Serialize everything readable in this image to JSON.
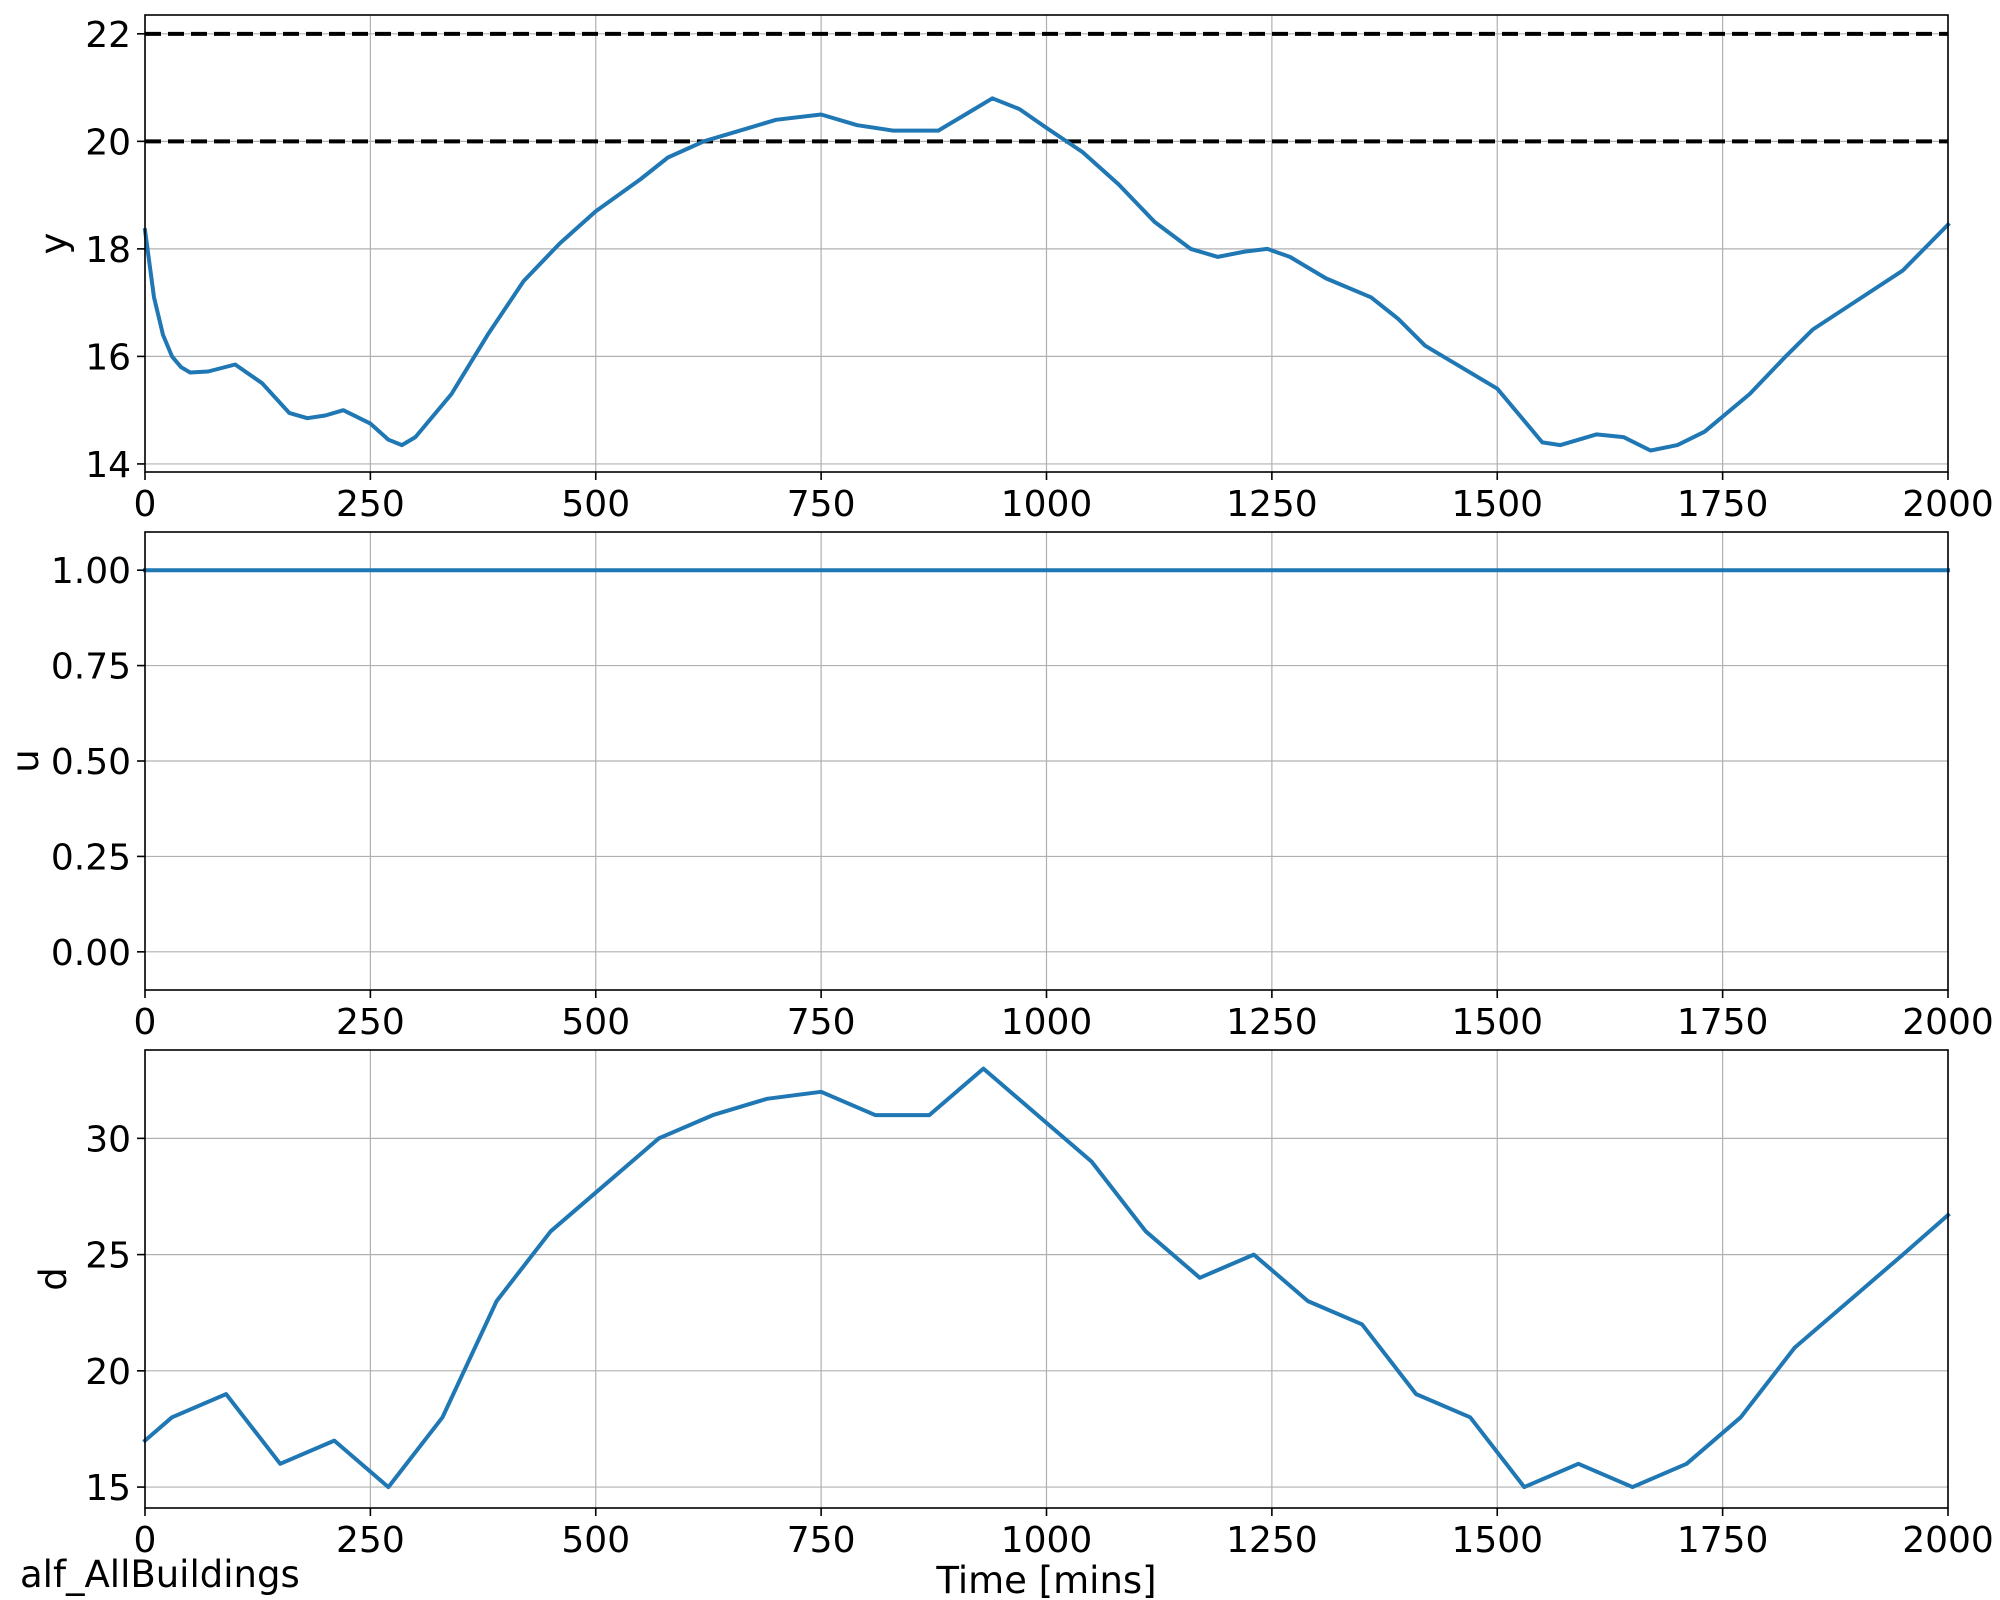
{
  "footer_text": "alf_AllBuildings",
  "chart_data": [
    {
      "type": "line",
      "ylabel": "y",
      "xlabel": "",
      "xlim": [
        0,
        2000
      ],
      "ylim": [
        13.85,
        22.35
      ],
      "xticks": [
        0,
        250,
        500,
        750,
        1000,
        1250,
        1500,
        1750,
        2000
      ],
      "yticks": [
        14,
        16,
        18,
        20,
        22
      ],
      "ytick_labels": [
        "14",
        "16",
        "18",
        "20",
        "22"
      ],
      "grid": true,
      "reference_lines": [
        {
          "y": 22,
          "style": "dashed",
          "color": "#000000"
        },
        {
          "y": 20,
          "style": "dashed",
          "color": "#000000"
        }
      ],
      "series": [
        {
          "color": "#1f77b4",
          "x": [
            0,
            10,
            20,
            30,
            40,
            50,
            70,
            100,
            130,
            160,
            180,
            200,
            220,
            250,
            270,
            285,
            300,
            340,
            380,
            420,
            460,
            500,
            550,
            580,
            620,
            660,
            700,
            750,
            790,
            830,
            880,
            910,
            940,
            970,
            1000,
            1040,
            1080,
            1120,
            1160,
            1190,
            1220,
            1245,
            1270,
            1310,
            1360,
            1390,
            1420,
            1460,
            1500,
            1530,
            1550,
            1570,
            1610,
            1640,
            1670,
            1700,
            1730,
            1780,
            1820,
            1850,
            1900,
            1950,
            2000
          ],
          "y": [
            18.35,
            17.1,
            16.4,
            16.0,
            15.8,
            15.7,
            15.72,
            15.85,
            15.5,
            14.95,
            14.85,
            14.9,
            15.0,
            14.75,
            14.45,
            14.35,
            14.5,
            15.3,
            16.4,
            17.4,
            18.1,
            18.7,
            19.3,
            19.7,
            20.0,
            20.2,
            20.4,
            20.5,
            20.3,
            20.2,
            20.2,
            20.5,
            20.8,
            20.6,
            20.25,
            19.8,
            19.2,
            18.5,
            18.0,
            17.85,
            17.95,
            18.0,
            17.85,
            17.45,
            17.1,
            16.7,
            16.2,
            15.8,
            15.4,
            14.8,
            14.4,
            14.35,
            14.55,
            14.5,
            14.25,
            14.35,
            14.6,
            15.3,
            16.0,
            16.5,
            17.05,
            17.6,
            18.45
          ]
        }
      ]
    },
    {
      "type": "line",
      "ylabel": "u",
      "xlabel": "",
      "xlim": [
        0,
        2000
      ],
      "ylim": [
        -0.1,
        1.1
      ],
      "xticks": [
        0,
        250,
        500,
        750,
        1000,
        1250,
        1500,
        1750,
        2000
      ],
      "yticks": [
        0,
        0.25,
        0.5,
        0.75,
        1.0
      ],
      "ytick_labels": [
        "0.00",
        "0.25",
        "0.50",
        "0.75",
        "1.00"
      ],
      "grid": true,
      "reference_lines": [],
      "series": [
        {
          "color": "#1f77b4",
          "x": [
            0,
            2000
          ],
          "y": [
            1.0,
            1.0
          ]
        }
      ]
    },
    {
      "type": "line",
      "ylabel": "d",
      "xlabel": "Time [mins]",
      "xlim": [
        0,
        2000
      ],
      "ylim": [
        14.1,
        33.8
      ],
      "xticks": [
        0,
        250,
        500,
        750,
        1000,
        1250,
        1500,
        1750,
        2000
      ],
      "yticks": [
        15,
        20,
        25,
        30
      ],
      "ytick_labels": [
        "15",
        "20",
        "25",
        "30"
      ],
      "grid": true,
      "reference_lines": [],
      "series": [
        {
          "color": "#1f77b4",
          "x": [
            0,
            30,
            90,
            150,
            210,
            270,
            330,
            390,
            450,
            510,
            570,
            630,
            690,
            750,
            810,
            870,
            930,
            990,
            1050,
            1110,
            1170,
            1230,
            1290,
            1350,
            1410,
            1470,
            1530,
            1590,
            1650,
            1710,
            1770,
            1830,
            1890,
            1950,
            2000
          ],
          "y": [
            17,
            18,
            19,
            16,
            17,
            15,
            18,
            23,
            26,
            28,
            30,
            31,
            31.7,
            32,
            31,
            31,
            33,
            31,
            29,
            26,
            24,
            25,
            23,
            22,
            19,
            18,
            15,
            16,
            15,
            16,
            18,
            21,
            23,
            25,
            26.7
          ]
        }
      ]
    }
  ]
}
